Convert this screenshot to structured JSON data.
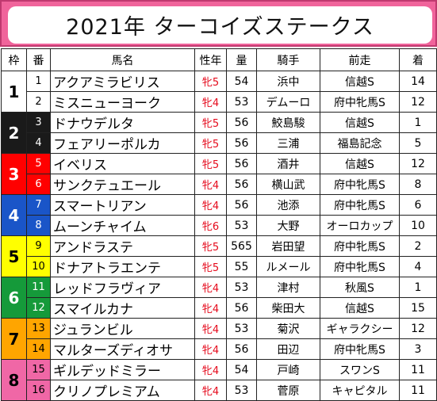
{
  "title": "2021年 ターコイズステークス",
  "headers": [
    "枠",
    "番",
    "馬名",
    "性年",
    "量",
    "騎手",
    "前走",
    "着"
  ],
  "rows": [
    {
      "waku": "1",
      "num": "1",
      "name": "アクアミラビリス",
      "sex": "牝5",
      "weight": "54",
      "jockey": "浜中",
      "prev": "信越S",
      "finish": "14"
    },
    {
      "waku": "1",
      "num": "2",
      "name": "ミスニューヨーク",
      "sex": "牝4",
      "weight": "53",
      "jockey": "デムーロ",
      "prev": "府中牝馬S",
      "finish": "12"
    },
    {
      "waku": "2",
      "num": "3",
      "name": "ドナウデルタ",
      "sex": "牝5",
      "weight": "56",
      "jockey": "鮫島駿",
      "prev": "信越S",
      "finish": "1"
    },
    {
      "waku": "2",
      "num": "4",
      "name": "フェアリーポルカ",
      "sex": "牝5",
      "weight": "56",
      "jockey": "三浦",
      "prev": "福島記念",
      "finish": "5"
    },
    {
      "waku": "3",
      "num": "5",
      "name": "イベリス",
      "sex": "牝5",
      "weight": "56",
      "jockey": "酒井",
      "prev": "信越S",
      "finish": "12"
    },
    {
      "waku": "3",
      "num": "6",
      "name": "サンクテュエール",
      "sex": "牝4",
      "weight": "56",
      "jockey": "横山武",
      "prev": "府中牝馬S",
      "finish": "8"
    },
    {
      "waku": "4",
      "num": "7",
      "name": "スマートリアン",
      "sex": "牝4",
      "weight": "56",
      "jockey": "池添",
      "prev": "府中牝馬S",
      "finish": "6"
    },
    {
      "waku": "4",
      "num": "8",
      "name": "ムーンチャイム",
      "sex": "牝6",
      "weight": "53",
      "jockey": "大野",
      "prev": "オーロカップ",
      "finish": "10"
    },
    {
      "waku": "5",
      "num": "9",
      "name": "アンドラステ",
      "sex": "牝5",
      "weight": "565",
      "jockey": "岩田望",
      "prev": "府中牝馬S",
      "finish": "2"
    },
    {
      "waku": "5",
      "num": "10",
      "name": "ドナアトラエンテ",
      "sex": "牝5",
      "weight": "55",
      "jockey": "ルメール",
      "prev": "府中牝馬S",
      "finish": "4"
    },
    {
      "waku": "6",
      "num": "11",
      "name": "レッドフラヴィア",
      "sex": "牝4",
      "weight": "53",
      "jockey": "津村",
      "prev": "秋風S",
      "finish": "1"
    },
    {
      "waku": "6",
      "num": "12",
      "name": "スマイルカナ",
      "sex": "牝4",
      "weight": "56",
      "jockey": "柴田大",
      "prev": "信越S",
      "finish": "15"
    },
    {
      "waku": "7",
      "num": "13",
      "name": "ジュランビル",
      "sex": "牝4",
      "weight": "53",
      "jockey": "菊沢",
      "prev": "ギャラクシー",
      "finish": "12"
    },
    {
      "waku": "7",
      "num": "14",
      "name": "マルターズディオサ",
      "sex": "牝4",
      "weight": "56",
      "jockey": "田辺",
      "prev": "府中牝馬S",
      "finish": "3"
    },
    {
      "waku": "8",
      "num": "15",
      "name": "ギルデッドミラー",
      "sex": "牝4",
      "weight": "54",
      "jockey": "戸崎",
      "prev": "スワンS",
      "finish": "11"
    },
    {
      "waku": "8",
      "num": "16",
      "name": "クリノプレミアム",
      "sex": "牝4",
      "weight": "53",
      "jockey": "菅原",
      "prev": "キャピタル",
      "finish": "11"
    }
  ]
}
